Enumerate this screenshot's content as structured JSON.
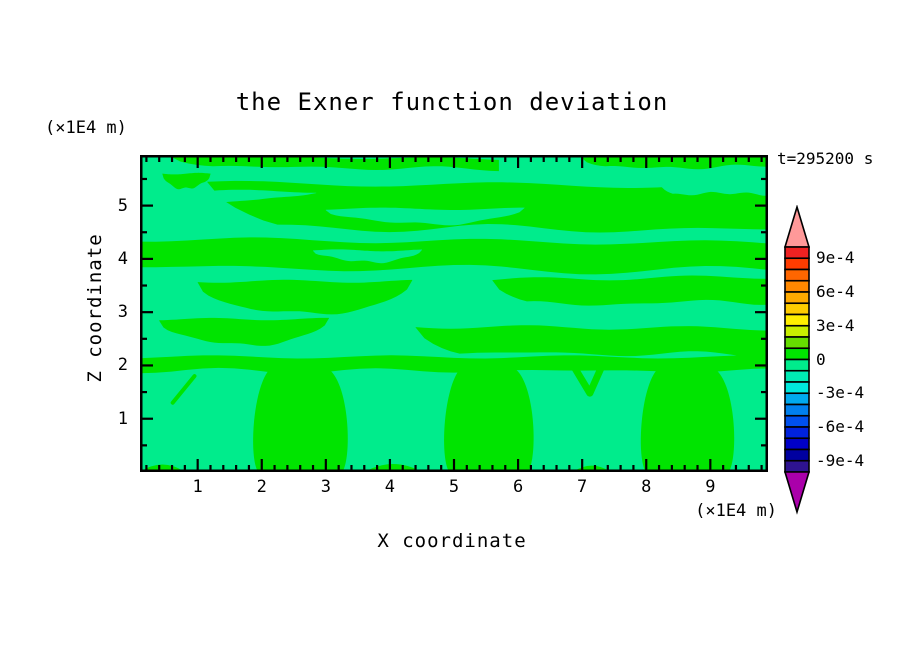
{
  "title": "the Exner function deviation",
  "top_left_unit": "(×1E4 m)",
  "time_label": "t=295200 s",
  "x_axis": {
    "label": "X coordinate",
    "unit": "(×1E4 m)",
    "major_ticks": [
      1,
      2,
      3,
      4,
      5,
      6,
      7,
      8,
      9
    ],
    "minor_step": 0.2
  },
  "z_axis": {
    "label": "Z coordinate",
    "major_ticks": [
      1,
      2,
      3,
      4,
      5
    ],
    "minor_step": 0.5
  },
  "colorbar": {
    "labels": [
      "9e-4",
      "6e-4",
      "3e-4",
      "0",
      "-3e-4",
      "-6e-4",
      "-9e-4"
    ],
    "label_boundary_indices": [
      1,
      4,
      7,
      10,
      13,
      16,
      19
    ],
    "segments_top_to_bottom": [
      "#ee2222",
      "#ff3c00",
      "#ff6600",
      "#ff8800",
      "#ffaa00",
      "#ffcc00",
      "#ffee00",
      "#c8ee00",
      "#66dd00",
      "#00e400",
      "#00ec8c",
      "#00eab4",
      "#00e8dc",
      "#00aaee",
      "#0080ee",
      "#0050ee",
      "#0022dd",
      "#0000c8",
      "#0000a0",
      "#2e1390"
    ],
    "over_arrow_color": "#ff9999",
    "under_arrow_color": "#aa00aa",
    "segment_value_step": "1e-4"
  },
  "chart_data": {
    "type": "heatmap",
    "title": "the Exner function deviation",
    "xlabel": "X coordinate",
    "ylabel": "Z coordinate",
    "x_unit": "×1E4 m",
    "z_unit": "×1E4 m",
    "time": "t=295200 s",
    "x_range": [
      0.1,
      9.9
    ],
    "z_range": [
      0.0,
      5.95
    ],
    "contour_interval": 0.0001,
    "colorbar_value_range": [
      -0.001,
      0.001
    ],
    "fill_positive": {
      "range": [
        0,
        0.0001
      ],
      "color": "#00e400"
    },
    "fill_negative": {
      "range": [
        -0.0001,
        0
      ],
      "color": "#00ec8c"
    },
    "background_sign": "negative",
    "bands_positive": [
      {
        "x0": 0.6,
        "x1": 5.7,
        "z0": 5.74,
        "z1": 5.93,
        "amp": 1.2,
        "cyc": 2,
        "ph": 0.8,
        "tilt": 3,
        "amp2": 1.2,
        "cyc2": 3,
        "ph2": 2,
        "taperL": true
      },
      {
        "x0": 7.0,
        "x1": 9.9,
        "z0": 5.7,
        "z1": 5.91,
        "amp": 1.2,
        "cyc": 1.5,
        "ph": 2.5,
        "tilt": -2,
        "taperL": true
      },
      {
        "x0": 0.45,
        "x1": 1.2,
        "z0": 5.32,
        "z1": 5.6,
        "lens": true,
        "amp": 0.8,
        "cyc": 1,
        "ph": 0
      },
      {
        "x0": 1.15,
        "x1": 9.9,
        "z0": 4.6,
        "z1": 5.42,
        "amp": 2.5,
        "cyc": 2.2,
        "ph": 3.8,
        "tilt": 3,
        "amp2": 2,
        "cyc2": 3.1,
        "ph2": 1.2,
        "taperL": true
      },
      {
        "x0": 0.1,
        "x1": 9.9,
        "z0": 3.85,
        "z1": 4.37,
        "amp": 2.5,
        "cyc": 2.8,
        "ph": 1.4,
        "tilt": 4,
        "amp2": 2.2,
        "cyc2": 2.2,
        "ph2": 4.4
      },
      {
        "x0": 1.0,
        "x1": 4.35,
        "z0": 2.97,
        "z1": 3.58,
        "lens": true,
        "amp": 1.5,
        "cyc": 1.6,
        "ph": 0.6
      },
      {
        "x0": 5.6,
        "x1": 9.9,
        "z0": 3.14,
        "z1": 3.61,
        "amp": 2,
        "cyc": 1.8,
        "ph": 2.9,
        "tilt": -3,
        "taperL": true
      },
      {
        "x0": 0.4,
        "x1": 3.05,
        "z0": 2.39,
        "z1": 2.87,
        "lens": true,
        "amp": 1.2,
        "cyc": 1.5,
        "ph": 1.8
      },
      {
        "x0": 4.4,
        "x1": 9.9,
        "z0": 2.24,
        "z1": 2.73,
        "amp": 2,
        "cyc": 2.2,
        "ph": 0.3,
        "tilt": 2,
        "taperL": true
      },
      {
        "x0": 0.1,
        "x1": 9.9,
        "z0": 1.9,
        "z1": 2.16,
        "amp": 1.6,
        "cyc": 3.5,
        "ph": 2.2,
        "amp2": 1.4,
        "cyc2": 4.5,
        "ph2": 0.9
      }
    ],
    "inclusions_negative": [
      {
        "x0": 0.1,
        "x1": 2.85,
        "z0": 4.86,
        "z1": 5.27,
        "taperR": true,
        "amp": 1.5,
        "cyc": 1.2,
        "ph": 0.4
      },
      {
        "x0": 3.0,
        "x1": 6.1,
        "z0": 4.66,
        "z1": 4.94,
        "lens": true,
        "amp": 1.2,
        "cyc": 1.4,
        "ph": 2.2
      },
      {
        "x0": 8.2,
        "x1": 9.9,
        "z0": 5.22,
        "z1": 5.46,
        "taperL": true,
        "amp": 1,
        "cyc": 1,
        "ph": 1
      },
      {
        "x0": 2.8,
        "x1": 4.5,
        "z0": 3.95,
        "z1": 4.16,
        "lens": true,
        "amp": 1,
        "cyc": 1.2,
        "ph": 3
      }
    ],
    "blobs_positive": [
      {
        "x0": 1.85,
        "x1": 3.35,
        "z_top": 1.97
      },
      {
        "x0": 4.83,
        "x1": 6.25,
        "z_top": 1.99
      },
      {
        "x0": 7.9,
        "x1": 9.38,
        "z_top": 1.97
      }
    ],
    "bottom_patches_positive": [
      {
        "cx": 0.45,
        "rx": 0.35,
        "h": 0.14
      },
      {
        "cx": 4.05,
        "rx": 0.45,
        "h": 0.15
      },
      {
        "cx": 7.15,
        "rx": 0.3,
        "h": 0.12
      }
    ],
    "sliver_positive": {
      "x0": 0.61,
      "z0": 1.3,
      "x1": 0.95,
      "z1": 1.8,
      "w": 4
    },
    "v_mark_positive": {
      "pts": [
        [
          6.85,
          2.02
        ],
        [
          7.12,
          1.48
        ],
        [
          7.32,
          2.02
        ]
      ],
      "w": 7
    }
  },
  "layout_colors": {
    "frame": "#000000",
    "text": "#000000"
  }
}
